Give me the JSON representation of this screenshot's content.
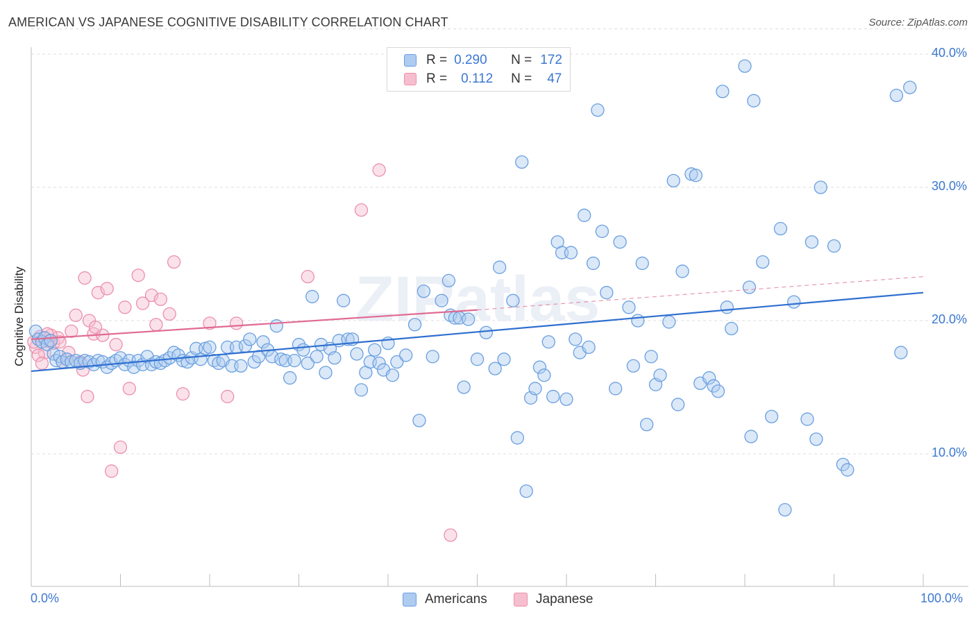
{
  "title": "AMERICAN VS JAPANESE COGNITIVE DISABILITY CORRELATION CHART",
  "source": "Source: ZipAtlas.com",
  "watermark": "ZIPatlas",
  "colors": {
    "americans_fill": "#aecbf0",
    "americans_stroke": "#6a9fe0",
    "americans_line": "#2f6fd0",
    "japanese_fill": "#f6bfd0",
    "japanese_stroke": "#ec8fac",
    "japanese_line": "#e06a92",
    "axis_text": "#3b78d0",
    "grid": "#dcdcdc"
  },
  "legend": {
    "rows": [
      {
        "r_label": "R =",
        "r_value": "0.290",
        "n_label": "N =",
        "n_value": "172"
      },
      {
        "r_label": "R =",
        "r_value": "0.112",
        "n_label": "N =",
        "n_value": "47"
      }
    ]
  },
  "bottom_legend": {
    "americans": "Americans",
    "japanese": "Japanese"
  },
  "chart_data": {
    "type": "scatter",
    "title": "AMERICAN VS JAPANESE COGNITIVE DISABILITY CORRELATION CHART",
    "xlabel": "",
    "ylabel": "Cognitive Disability",
    "xlim": [
      0,
      100
    ],
    "ylim": [
      0,
      42
    ],
    "x_tick_labels": [
      "0.0%",
      "100.0%"
    ],
    "y_ticks": [
      10,
      20,
      30,
      40
    ],
    "y_tick_labels": [
      "10.0%",
      "20.0%",
      "30.0%",
      "40.0%"
    ],
    "grid": true,
    "legend_position": "top-center",
    "series": [
      {
        "name": "Americans",
        "r": 0.29,
        "n": 172,
        "trend": {
          "x": [
            0,
            100
          ],
          "y": [
            16.2,
            22.1
          ],
          "style": "solid"
        },
        "points": [
          [
            0.5,
            19.2
          ],
          [
            0.8,
            18.6
          ],
          [
            1.2,
            18.4
          ],
          [
            1.5,
            18.7
          ],
          [
            1.8,
            18.2
          ],
          [
            2.2,
            18.5
          ],
          [
            2.5,
            17.5
          ],
          [
            2.8,
            17.0
          ],
          [
            3.2,
            17.3
          ],
          [
            3.5,
            16.9
          ],
          [
            4.0,
            17.1
          ],
          [
            4.5,
            16.9
          ],
          [
            5.0,
            17.0
          ],
          [
            5.5,
            16.8
          ],
          [
            6.0,
            17.0
          ],
          [
            6.5,
            16.9
          ],
          [
            7.0,
            16.7
          ],
          [
            7.5,
            17.0
          ],
          [
            8.0,
            16.9
          ],
          [
            8.5,
            16.5
          ],
          [
            9.0,
            16.8
          ],
          [
            9.5,
            17.0
          ],
          [
            10.0,
            17.2
          ],
          [
            10.5,
            16.7
          ],
          [
            11.0,
            17.0
          ],
          [
            11.5,
            16.5
          ],
          [
            12.0,
            17.0
          ],
          [
            12.5,
            16.7
          ],
          [
            13.0,
            17.3
          ],
          [
            13.5,
            16.7
          ],
          [
            14.0,
            16.9
          ],
          [
            14.5,
            16.8
          ],
          [
            15.0,
            17.0
          ],
          [
            15.5,
            17.2
          ],
          [
            16.0,
            17.6
          ],
          [
            16.5,
            17.4
          ],
          [
            17.0,
            17.0
          ],
          [
            17.5,
            16.9
          ],
          [
            18.0,
            17.2
          ],
          [
            18.5,
            17.9
          ],
          [
            19.0,
            17.1
          ],
          [
            19.5,
            17.9
          ],
          [
            20.0,
            18.0
          ],
          [
            20.5,
            17.0
          ],
          [
            21.0,
            16.8
          ],
          [
            21.5,
            17.0
          ],
          [
            22.0,
            18.0
          ],
          [
            22.5,
            16.6
          ],
          [
            23.0,
            18.0
          ],
          [
            23.5,
            16.6
          ],
          [
            24.0,
            18.1
          ],
          [
            24.5,
            18.6
          ],
          [
            25.0,
            16.9
          ],
          [
            25.5,
            17.3
          ],
          [
            26.0,
            18.4
          ],
          [
            26.5,
            17.8
          ],
          [
            27.0,
            17.3
          ],
          [
            27.5,
            19.6
          ],
          [
            28.0,
            17.1
          ],
          [
            28.5,
            17.0
          ],
          [
            29.0,
            15.7
          ],
          [
            29.5,
            17.0
          ],
          [
            30.0,
            18.2
          ],
          [
            30.5,
            17.8
          ],
          [
            31.0,
            16.8
          ],
          [
            31.5,
            21.8
          ],
          [
            32.0,
            17.3
          ],
          [
            32.5,
            18.2
          ],
          [
            33.0,
            16.1
          ],
          [
            33.5,
            17.9
          ],
          [
            34.0,
            17.2
          ],
          [
            34.5,
            18.5
          ],
          [
            35.0,
            21.5
          ],
          [
            35.5,
            18.6
          ],
          [
            36.0,
            18.6
          ],
          [
            36.5,
            17.5
          ],
          [
            37.0,
            14.8
          ],
          [
            37.5,
            16.1
          ],
          [
            38.0,
            16.9
          ],
          [
            38.5,
            17.8
          ],
          [
            39.0,
            16.8
          ],
          [
            39.5,
            16.3
          ],
          [
            40.0,
            18.3
          ],
          [
            40.5,
            15.9
          ],
          [
            41.0,
            16.9
          ],
          [
            42.0,
            17.4
          ],
          [
            43.0,
            19.7
          ],
          [
            43.5,
            12.5
          ],
          [
            44.0,
            22.2
          ],
          [
            45.0,
            17.3
          ],
          [
            46.0,
            21.5
          ],
          [
            46.8,
            23.0
          ],
          [
            47.0,
            20.4
          ],
          [
            47.5,
            20.2
          ],
          [
            48.0,
            20.2
          ],
          [
            48.5,
            15.0
          ],
          [
            49.0,
            20.1
          ],
          [
            50.0,
            17.1
          ],
          [
            51.0,
            19.1
          ],
          [
            52.0,
            16.4
          ],
          [
            52.5,
            24.0
          ],
          [
            53.0,
            17.1
          ],
          [
            54.0,
            21.5
          ],
          [
            54.5,
            11.2
          ],
          [
            55.0,
            31.9
          ],
          [
            55.5,
            7.2
          ],
          [
            56.0,
            14.2
          ],
          [
            56.5,
            14.9
          ],
          [
            57.0,
            16.5
          ],
          [
            57.5,
            15.9
          ],
          [
            58.0,
            18.4
          ],
          [
            58.5,
            14.3
          ],
          [
            59.0,
            25.9
          ],
          [
            59.5,
            25.1
          ],
          [
            60.0,
            14.1
          ],
          [
            60.5,
            25.1
          ],
          [
            61.0,
            18.6
          ],
          [
            61.5,
            17.6
          ],
          [
            62.0,
            27.9
          ],
          [
            62.5,
            18.0
          ],
          [
            63.0,
            24.3
          ],
          [
            63.5,
            35.8
          ],
          [
            64.0,
            26.7
          ],
          [
            64.5,
            22.1
          ],
          [
            65.5,
            14.9
          ],
          [
            66.0,
            25.9
          ],
          [
            67.0,
            21.0
          ],
          [
            67.5,
            16.6
          ],
          [
            68.0,
            20.0
          ],
          [
            68.5,
            24.3
          ],
          [
            69.0,
            12.2
          ],
          [
            69.5,
            17.3
          ],
          [
            70.0,
            15.2
          ],
          [
            70.5,
            15.9
          ],
          [
            71.5,
            19.9
          ],
          [
            72.0,
            30.5
          ],
          [
            72.5,
            13.7
          ],
          [
            73.0,
            23.7
          ],
          [
            74.0,
            31.0
          ],
          [
            74.5,
            30.9
          ],
          [
            75.0,
            15.3
          ],
          [
            76.0,
            15.7
          ],
          [
            76.5,
            15.1
          ],
          [
            77.0,
            14.7
          ],
          [
            77.5,
            37.2
          ],
          [
            78.0,
            21.0
          ],
          [
            78.5,
            19.4
          ],
          [
            80.0,
            39.1
          ],
          [
            80.5,
            22.5
          ],
          [
            80.7,
            11.3
          ],
          [
            81.0,
            36.5
          ],
          [
            82.0,
            24.4
          ],
          [
            83.0,
            12.8
          ],
          [
            84.0,
            26.9
          ],
          [
            84.5,
            5.8
          ],
          [
            85.5,
            21.4
          ],
          [
            87.0,
            12.6
          ],
          [
            87.5,
            25.9
          ],
          [
            88.0,
            11.1
          ],
          [
            88.5,
            30.0
          ],
          [
            90.0,
            25.6
          ],
          [
            91.0,
            9.2
          ],
          [
            91.5,
            8.8
          ],
          [
            97.0,
            36.9
          ],
          [
            97.5,
            17.6
          ],
          [
            98.5,
            37.5
          ]
        ]
      },
      {
        "name": "Japanese",
        "r": 0.112,
        "n": 47,
        "trend": {
          "x": [
            0,
            50
          ],
          "y": [
            18.6,
            20.8
          ],
          "style": "solid",
          "extended_to": [
            100,
            23.3
          ],
          "extended_style": "dashed"
        },
        "points": [
          [
            0.5,
            18.0
          ],
          [
            1.0,
            18.8
          ],
          [
            1.5,
            17.6
          ],
          [
            2.0,
            18.5
          ],
          [
            2.5,
            18.3
          ],
          [
            3.0,
            18.7
          ],
          [
            3.5,
            16.9
          ],
          [
            4.0,
            17.1
          ],
          [
            4.5,
            19.2
          ],
          [
            5.0,
            20.4
          ],
          [
            5.5,
            16.9
          ],
          [
            6.0,
            23.2
          ],
          [
            6.3,
            14.3
          ],
          [
            6.5,
            20.0
          ],
          [
            7.0,
            19.0
          ],
          [
            7.5,
            22.1
          ],
          [
            8.0,
            18.9
          ],
          [
            8.5,
            22.4
          ],
          [
            9.0,
            8.7
          ],
          [
            9.5,
            18.2
          ],
          [
            10.0,
            10.5
          ],
          [
            10.5,
            21.0
          ],
          [
            11.0,
            14.9
          ],
          [
            12.0,
            23.4
          ],
          [
            12.5,
            21.3
          ],
          [
            13.5,
            21.9
          ],
          [
            14.0,
            19.7
          ],
          [
            14.5,
            21.6
          ],
          [
            15.5,
            20.5
          ],
          [
            16.0,
            24.4
          ],
          [
            17.0,
            14.5
          ],
          [
            20.0,
            19.8
          ],
          [
            22.0,
            14.3
          ],
          [
            23.0,
            19.8
          ],
          [
            31.0,
            23.3
          ],
          [
            37.0,
            28.3
          ],
          [
            39.0,
            31.3
          ],
          [
            47.0,
            3.9
          ],
          [
            0.8,
            17.4
          ],
          [
            1.2,
            16.8
          ],
          [
            2.2,
            18.9
          ],
          [
            3.2,
            18.4
          ],
          [
            4.2,
            17.6
          ],
          [
            5.8,
            16.3
          ],
          [
            7.2,
            19.5
          ],
          [
            1.8,
            19.0
          ],
          [
            0.3,
            18.4
          ]
        ]
      }
    ]
  }
}
